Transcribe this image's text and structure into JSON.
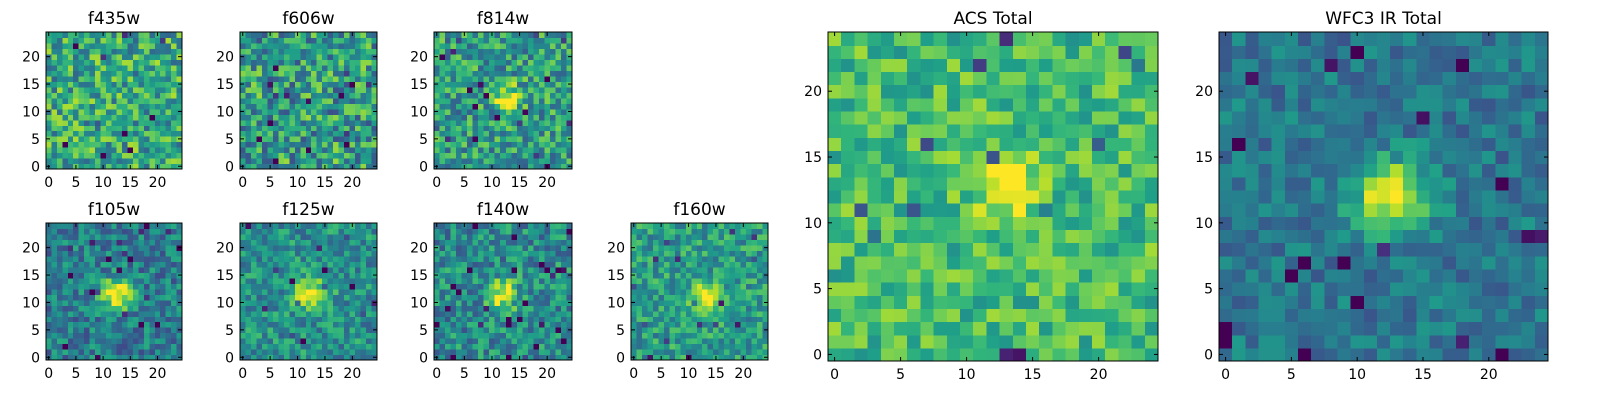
{
  "chart_data": [
    {
      "type": "heatmap",
      "title": "f435w",
      "xlim": [
        0,
        24
      ],
      "ylim": [
        0,
        24
      ],
      "xticks": [
        "0",
        "5",
        "10",
        "15",
        "20"
      ],
      "yticks": [
        "0",
        "5",
        "10",
        "15",
        "20"
      ],
      "colormap": "viridis",
      "peak": null,
      "mean_level": 0.6,
      "noise": 0.28,
      "seed": 11
    },
    {
      "type": "heatmap",
      "title": "f606w",
      "xlim": [
        0,
        24
      ],
      "ylim": [
        0,
        24
      ],
      "xticks": [
        "0",
        "5",
        "10",
        "15",
        "20"
      ],
      "yticks": [
        "0",
        "5",
        "10",
        "15",
        "20"
      ],
      "colormap": "viridis",
      "peak": null,
      "mean_level": 0.55,
      "noise": 0.3,
      "seed": 23
    },
    {
      "type": "heatmap",
      "title": "f814w",
      "xlim": [
        0,
        24
      ],
      "ylim": [
        0,
        24
      ],
      "xticks": [
        "0",
        "5",
        "10",
        "15",
        "20"
      ],
      "yticks": [
        "0",
        "5",
        "10",
        "15",
        "20"
      ],
      "colormap": "viridis",
      "peak": {
        "x": 13,
        "y": 12.5,
        "amp": 0.5,
        "sigma": 1.6
      },
      "mean_level": 0.55,
      "noise": 0.26,
      "seed": 37
    },
    {
      "type": "heatmap",
      "title": "f105w",
      "xlim": [
        0,
        24
      ],
      "ylim": [
        0,
        24
      ],
      "xticks": [
        "0",
        "5",
        "10",
        "15",
        "20"
      ],
      "yticks": [
        "0",
        "5",
        "10",
        "15",
        "20"
      ],
      "colormap": "viridis",
      "peak": {
        "x": 12.5,
        "y": 11.5,
        "amp": 0.65,
        "sigma": 2.0
      },
      "mean_level": 0.42,
      "noise": 0.2,
      "seed": 41
    },
    {
      "type": "heatmap",
      "title": "f125w",
      "xlim": [
        0,
        24
      ],
      "ylim": [
        0,
        24
      ],
      "xticks": [
        "0",
        "5",
        "10",
        "15",
        "20"
      ],
      "yticks": [
        "0",
        "5",
        "10",
        "15",
        "20"
      ],
      "colormap": "viridis",
      "peak": {
        "x": 12.5,
        "y": 11.5,
        "amp": 0.55,
        "sigma": 2.0
      },
      "mean_level": 0.5,
      "noise": 0.2,
      "seed": 53
    },
    {
      "type": "heatmap",
      "title": "f140w",
      "xlim": [
        0,
        24
      ],
      "ylim": [
        0,
        24
      ],
      "xticks": [
        "0",
        "5",
        "10",
        "15",
        "20"
      ],
      "yticks": [
        "0",
        "5",
        "10",
        "15",
        "20"
      ],
      "colormap": "viridis",
      "peak": {
        "x": 12,
        "y": 11.5,
        "amp": 0.55,
        "sigma": 1.8
      },
      "mean_level": 0.48,
      "noise": 0.22,
      "seed": 67
    },
    {
      "type": "heatmap",
      "title": "f160w",
      "xlim": [
        0,
        24
      ],
      "ylim": [
        0,
        24
      ],
      "xticks": [
        "0",
        "5",
        "10",
        "15",
        "20"
      ],
      "yticks": [
        "0",
        "5",
        "10",
        "15",
        "20"
      ],
      "colormap": "viridis",
      "peak": {
        "x": 13,
        "y": 11,
        "amp": 0.5,
        "sigma": 1.8
      },
      "mean_level": 0.55,
      "noise": 0.2,
      "seed": 79
    },
    {
      "type": "heatmap",
      "title": "ACS Total",
      "xlim": [
        0,
        24
      ],
      "ylim": [
        0,
        24
      ],
      "xticks": [
        "0",
        "5",
        "10",
        "15",
        "20"
      ],
      "yticks": [
        "0",
        "5",
        "10",
        "15",
        "20"
      ],
      "colormap": "viridis",
      "peak": {
        "x": 13,
        "y": 12.5,
        "amp": 0.35,
        "sigma": 1.7
      },
      "mean_level": 0.68,
      "noise": 0.18,
      "seed": 97
    },
    {
      "type": "heatmap",
      "title": "WFC3 IR Total",
      "xlim": [
        0,
        24
      ],
      "ylim": [
        0,
        24
      ],
      "xticks": [
        "0",
        "5",
        "10",
        "15",
        "20"
      ],
      "yticks": [
        "0",
        "5",
        "10",
        "15",
        "20"
      ],
      "colormap": "viridis",
      "peak": {
        "x": 12.5,
        "y": 12,
        "amp": 0.62,
        "sigma": 1.9
      },
      "mean_level": 0.4,
      "noise": 0.14,
      "seed": 101
    }
  ]
}
